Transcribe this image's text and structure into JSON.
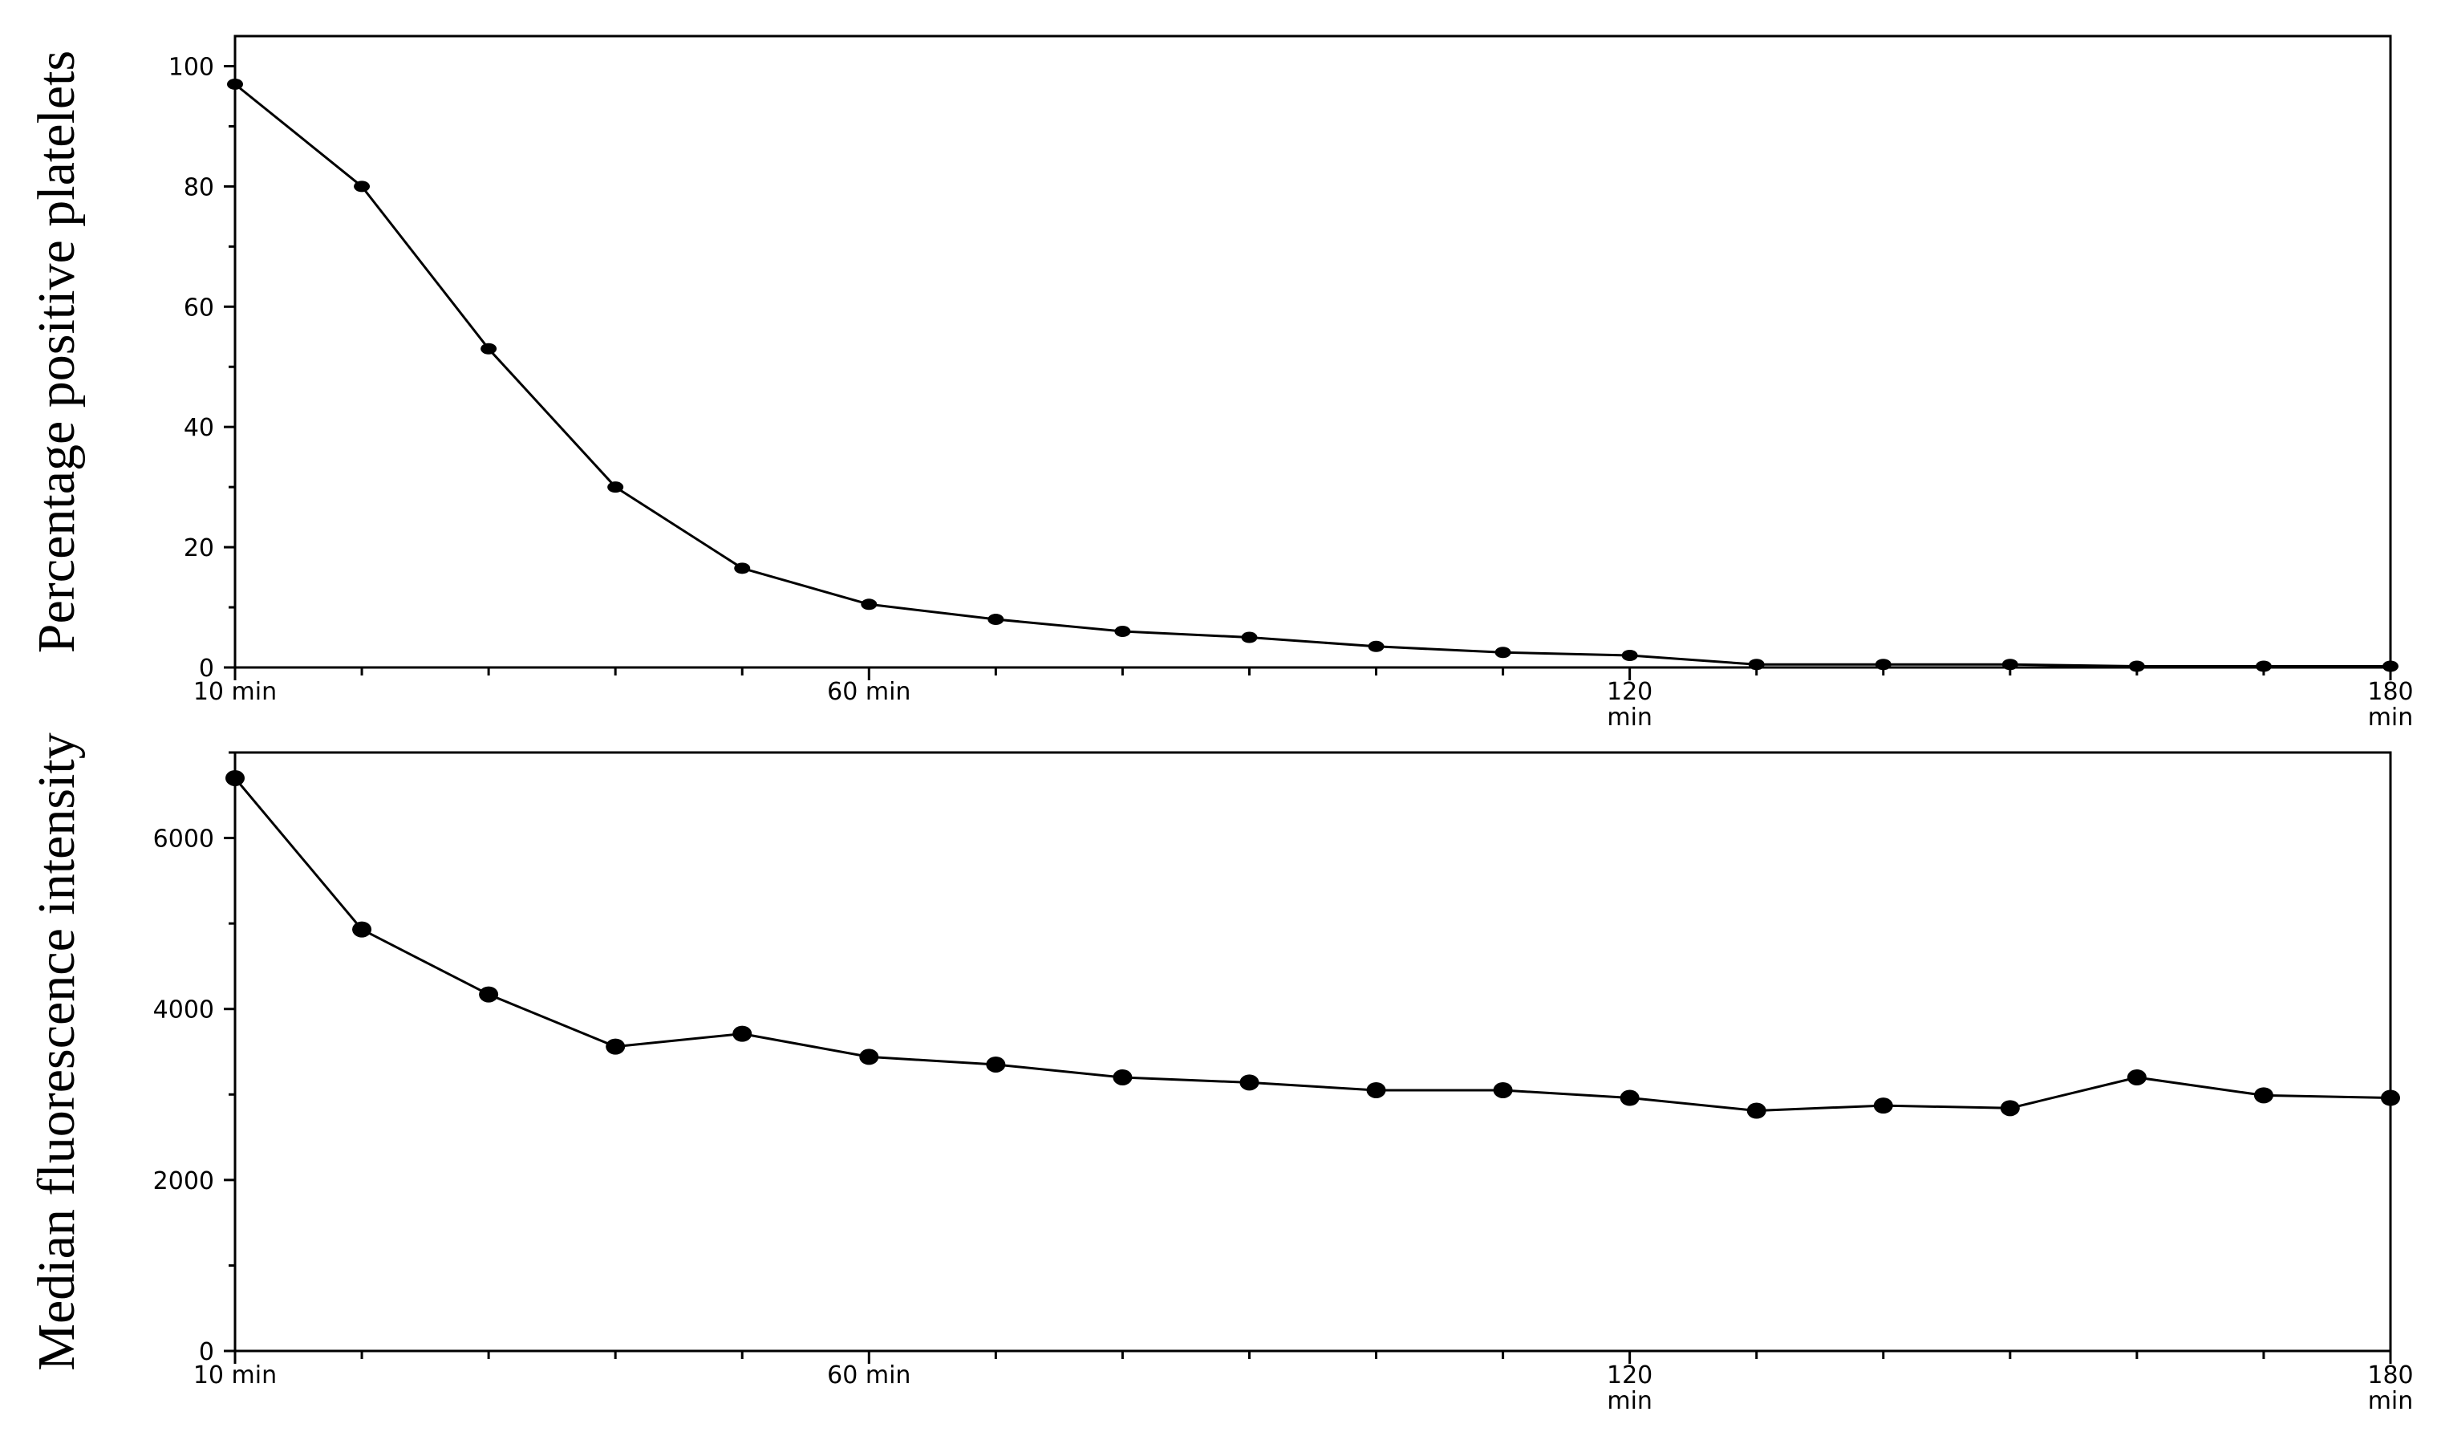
{
  "colors": {
    "line": "#000000",
    "marker": "#000000",
    "background": "#ffffff"
  },
  "chart_data": [
    {
      "type": "line",
      "title": "",
      "xlabel": "",
      "ylabel": "Percentage positive platelets",
      "grid": false,
      "legend": "none",
      "xlim": [
        10,
        180
      ],
      "ylim": [
        0,
        105
      ],
      "x_major_ticks": [
        {
          "value": 10,
          "lines": [
            "10 min"
          ]
        },
        {
          "value": 60,
          "lines": [
            "60 min"
          ]
        },
        {
          "value": 120,
          "lines": [
            "120",
            "min"
          ]
        },
        {
          "value": 180,
          "lines": [
            "180",
            "min"
          ]
        }
      ],
      "x_minor_ticks": [
        20,
        30,
        40,
        50,
        70,
        80,
        90,
        100,
        110,
        130,
        140,
        150,
        160,
        170
      ],
      "y_major_ticks": [
        {
          "value": 0,
          "label": "0"
        },
        {
          "value": 20,
          "label": "20"
        },
        {
          "value": 40,
          "label": "40"
        },
        {
          "value": 60,
          "label": "60"
        },
        {
          "value": 80,
          "label": "80"
        },
        {
          "value": 100,
          "label": "100"
        }
      ],
      "y_minor_ticks": [
        10,
        30,
        50,
        70,
        90
      ],
      "series": [
        {
          "x": [
            10,
            20,
            30,
            40,
            50,
            60,
            70,
            80,
            90,
            100,
            110,
            120,
            130,
            140,
            150,
            160,
            170,
            180
          ],
          "values": [
            97,
            80,
            53,
            30,
            16.5,
            10.5,
            8,
            6,
            5,
            3.5,
            2.5,
            2,
            0.5,
            0.5,
            0.5,
            0.2,
            0.2,
            0.2
          ]
        }
      ]
    },
    {
      "type": "line",
      "title": "",
      "xlabel": "",
      "ylabel": "Median fluorescence intensity",
      "grid": false,
      "legend": "none",
      "xlim": [
        10,
        180
      ],
      "ylim": [
        0,
        7000
      ],
      "x_major_ticks": [
        {
          "value": 10,
          "lines": [
            "10 min"
          ]
        },
        {
          "value": 60,
          "lines": [
            "60 min"
          ]
        },
        {
          "value": 120,
          "lines": [
            "120",
            "min"
          ]
        },
        {
          "value": 180,
          "lines": [
            "180",
            "min"
          ]
        }
      ],
      "x_minor_ticks": [
        20,
        30,
        40,
        50,
        70,
        80,
        90,
        100,
        110,
        130,
        140,
        150,
        160,
        170
      ],
      "y_major_ticks": [
        {
          "value": 0,
          "label": "0"
        },
        {
          "value": 2000,
          "label": "2000"
        },
        {
          "value": 4000,
          "label": "4000"
        },
        {
          "value": 6000,
          "label": "6000"
        }
      ],
      "y_minor_ticks": [
        1000,
        3000,
        5000,
        7000
      ],
      "series": [
        {
          "x": [
            10,
            20,
            30,
            40,
            50,
            60,
            70,
            80,
            90,
            100,
            110,
            120,
            130,
            140,
            150,
            160,
            170,
            180
          ],
          "values": [
            6700,
            4930,
            4170,
            3560,
            3710,
            3440,
            3350,
            3200,
            3140,
            3050,
            3050,
            2960,
            2810,
            2870,
            2840,
            3200,
            2990,
            2960
          ]
        }
      ]
    }
  ]
}
